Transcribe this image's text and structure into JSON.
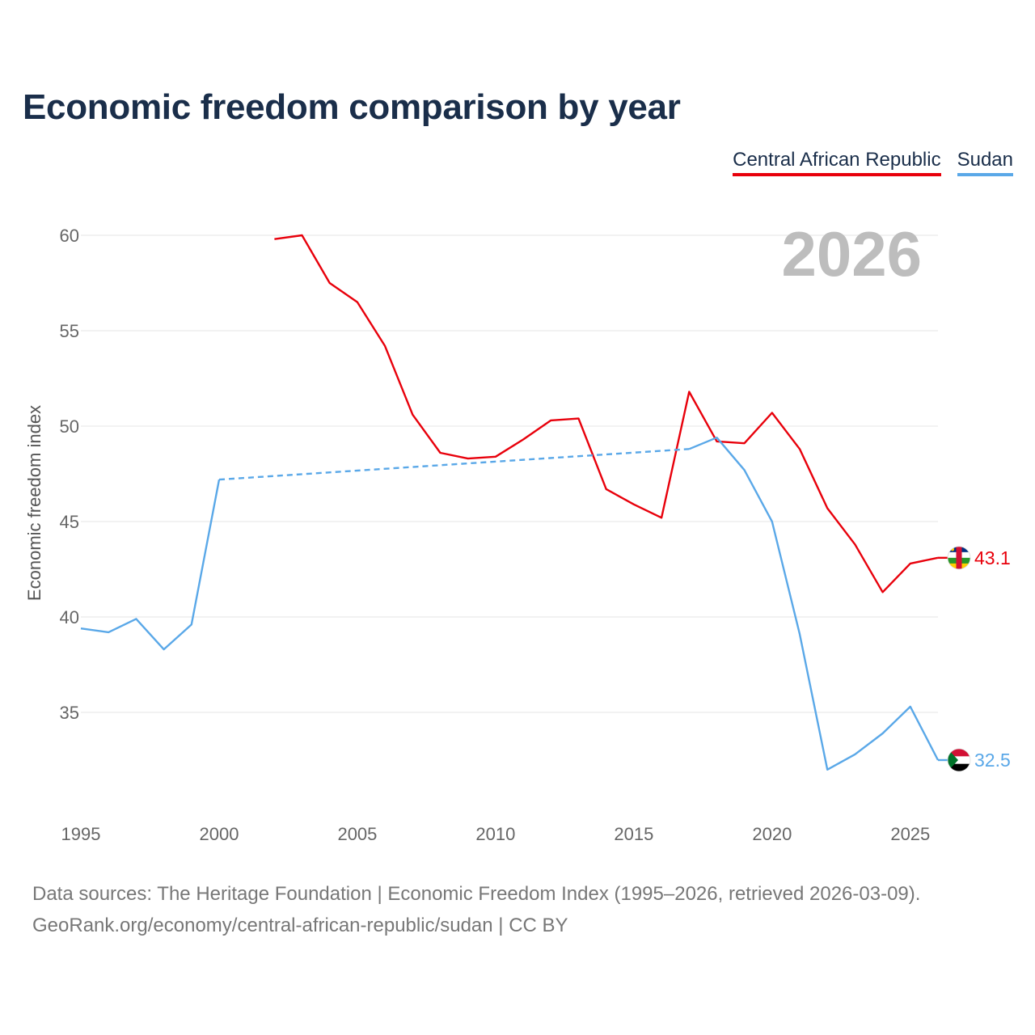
{
  "colors": {
    "car": "#e8000b",
    "sudan": "#5aa8e8",
    "title": "#1a2e4a"
  },
  "chart_data": {
    "type": "line",
    "title": "Economic freedom comparison by year",
    "xlabel": "",
    "ylabel": "Economic freedom index",
    "xlim": [
      1995,
      2026
    ],
    "ylim": [
      30,
      62
    ],
    "x_ticks": [
      1995,
      2000,
      2005,
      2010,
      2015,
      2020,
      2025
    ],
    "y_ticks": [
      35,
      40,
      45,
      50,
      55,
      60
    ],
    "current_year": "2026",
    "legend_position": "top-right",
    "series": [
      {
        "name": "Central African Republic",
        "color": "#e8000b",
        "end_label": "43.1",
        "flag": "central-african-republic-flag",
        "points": [
          [
            2002,
            59.8
          ],
          [
            2003,
            60.0
          ],
          [
            2004,
            57.5
          ],
          [
            2005,
            56.5
          ],
          [
            2006,
            54.2
          ],
          [
            2007,
            50.6
          ],
          [
            2008,
            48.6
          ],
          [
            2009,
            48.3
          ],
          [
            2010,
            48.4
          ],
          [
            2011,
            49.3
          ],
          [
            2012,
            50.3
          ],
          [
            2013,
            50.4
          ],
          [
            2014,
            46.7
          ],
          [
            2015,
            45.9
          ],
          [
            2016,
            45.2
          ],
          [
            2017,
            51.8
          ],
          [
            2018,
            49.2
          ],
          [
            2019,
            49.1
          ],
          [
            2020,
            50.7
          ],
          [
            2021,
            48.8
          ],
          [
            2022,
            45.7
          ],
          [
            2023,
            43.8
          ],
          [
            2024,
            41.3
          ],
          [
            2025,
            42.8
          ],
          [
            2026,
            43.1
          ]
        ]
      },
      {
        "name": "Sudan",
        "color": "#5aa8e8",
        "end_label": "32.5",
        "flag": "sudan-flag",
        "gap": [
          2000,
          2017
        ],
        "points": [
          [
            1995,
            39.4
          ],
          [
            1996,
            39.2
          ],
          [
            1997,
            39.9
          ],
          [
            1998,
            38.3
          ],
          [
            1999,
            39.6
          ],
          [
            2000,
            47.2
          ],
          [
            2017,
            48.8
          ],
          [
            2018,
            49.4
          ],
          [
            2019,
            47.7
          ],
          [
            2020,
            45.0
          ],
          [
            2021,
            39.1
          ],
          [
            2022,
            32.0
          ],
          [
            2023,
            32.8
          ],
          [
            2024,
            33.9
          ],
          [
            2025,
            35.3
          ],
          [
            2026,
            32.5
          ]
        ]
      }
    ]
  },
  "footer": {
    "line1": "Data sources: The Heritage Foundation | Economic Freedom Index (1995–2026, retrieved 2026-03-09).",
    "line2": "GeoRank.org/economy/central-african-republic/sudan | CC BY"
  }
}
